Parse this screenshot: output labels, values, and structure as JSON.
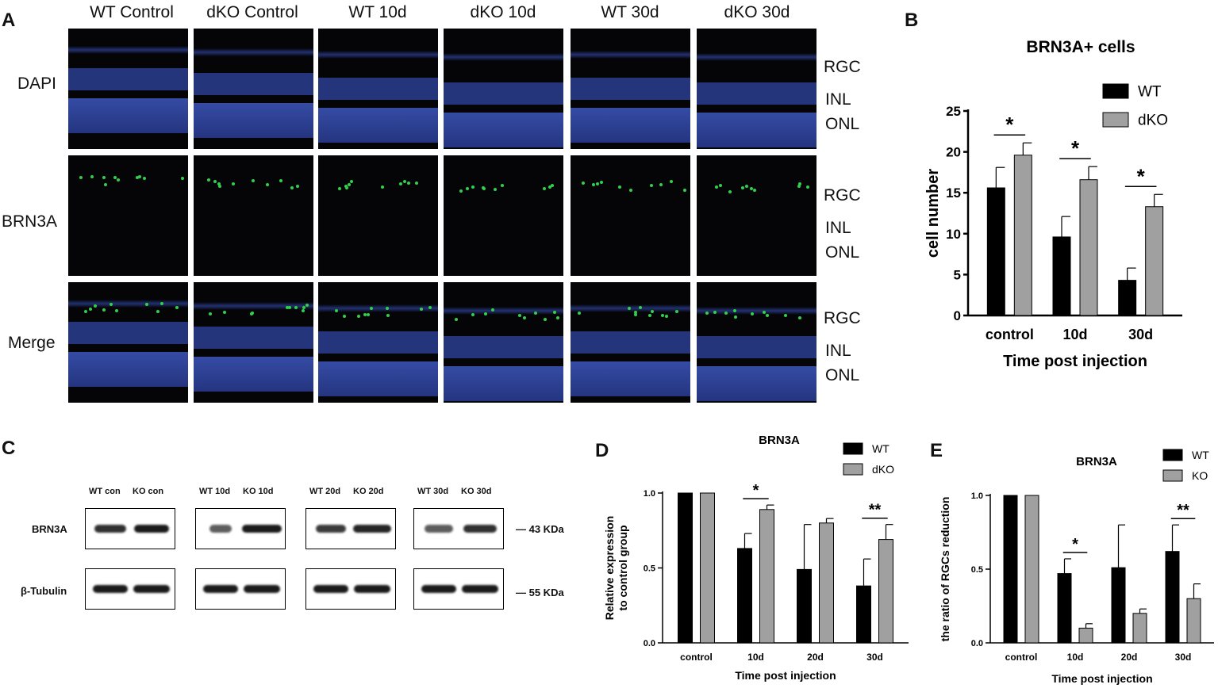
{
  "panels": {
    "A": "A",
    "B": "B",
    "C": "C",
    "D": "D",
    "E": "E"
  },
  "panelA": {
    "columns": [
      "WT  Control",
      "dKO  Control",
      "WT  10d",
      "dKO  10d",
      "WT  30d",
      "dKO  30d"
    ],
    "rows": [
      "DAPI",
      "BRN3A",
      "Merge"
    ],
    "layers": [
      "RGC",
      "INL",
      "ONL"
    ],
    "colors": {
      "dapi": "#3a55c8",
      "brn3a": "#2fd04a",
      "background": "#050508"
    }
  },
  "panelC": {
    "lanes": [
      [
        "WT con",
        "KO con"
      ],
      [
        "WT 10d",
        "KO 10d"
      ],
      [
        "WT 20d",
        "KO 20d"
      ],
      [
        "WT 30d",
        "KO 30d"
      ]
    ],
    "rows": [
      "BRN3A",
      "β-Tubulin"
    ],
    "sizes": [
      "— 43 KDa",
      "— 55 KDa"
    ]
  },
  "chart_data": [
    {
      "id": "B",
      "type": "bar",
      "title": "BRN3A+ cells",
      "xlabel": "Time post injection",
      "ylabel": "cell number",
      "categories": [
        "control",
        "10d",
        "30d"
      ],
      "yticks": [
        "0",
        "5",
        "10",
        "15",
        "20",
        "25"
      ],
      "ylim": [
        0,
        25
      ],
      "series": [
        {
          "name": "WT",
          "values": [
            15.6,
            9.6,
            4.3
          ],
          "errors": [
            2.5,
            2.5,
            1.5
          ],
          "color": "#000000"
        },
        {
          "name": "dKO",
          "values": [
            19.6,
            16.6,
            13.3
          ],
          "errors": [
            1.5,
            1.6,
            1.5
          ],
          "color": "#a0a0a0"
        }
      ],
      "significance": [
        "*",
        "*",
        "*"
      ]
    },
    {
      "id": "D",
      "type": "bar",
      "title": "BRN3A",
      "xlabel": "Time post injection",
      "ylabel": "Relative expression to control group",
      "ylabel_lines": [
        "Relative expression",
        "to control group"
      ],
      "categories": [
        "control",
        "10d",
        "20d",
        "30d"
      ],
      "yticks": [
        "0.0",
        "0.5",
        "1.0"
      ],
      "ylim": [
        0,
        1.0
      ],
      "series": [
        {
          "name": "WT",
          "values": [
            1.0,
            0.63,
            0.49,
            0.38
          ],
          "errors": [
            0,
            0.1,
            0.3,
            0.18
          ],
          "color": "#000000"
        },
        {
          "name": "dKO",
          "values": [
            1.0,
            0.89,
            0.8,
            0.69
          ],
          "errors": [
            0,
            0.03,
            0.03,
            0.1
          ],
          "color": "#a0a0a0"
        }
      ],
      "significance": [
        "",
        "*",
        "",
        "**"
      ]
    },
    {
      "id": "E",
      "type": "bar",
      "title": "BRN3A",
      "xlabel": "Time post injection",
      "ylabel": "the ratio of RGCs reduction",
      "categories": [
        "control",
        "10d",
        "20d",
        "30d"
      ],
      "yticks": [
        "0.0",
        "0.5",
        "1.0"
      ],
      "ylim": [
        0,
        1.0
      ],
      "series": [
        {
          "name": "WT",
          "values": [
            1.0,
            0.47,
            0.51,
            0.62
          ],
          "errors": [
            0,
            0.1,
            0.29,
            0.18
          ],
          "color": "#000000"
        },
        {
          "name": "KO",
          "values": [
            1.0,
            0.1,
            0.2,
            0.3
          ],
          "errors": [
            0,
            0.03,
            0.03,
            0.1
          ],
          "color": "#a0a0a0"
        }
      ],
      "significance": [
        "",
        "*",
        "",
        "**"
      ]
    }
  ]
}
